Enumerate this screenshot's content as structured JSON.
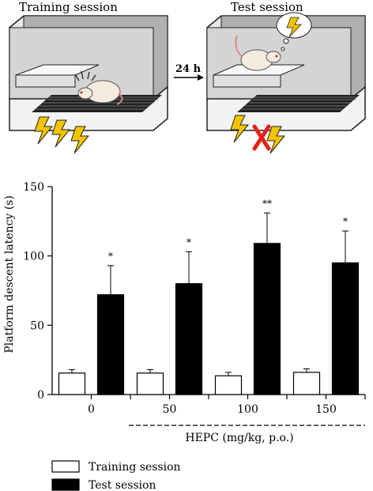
{
  "illustration": {
    "left_title": "Training session",
    "right_title": "Test session",
    "arrow_label": "24 h"
  },
  "chart_data": {
    "type": "bar",
    "categories": [
      "0",
      "50",
      "100",
      "150"
    ],
    "series": [
      {
        "name": "Training session",
        "values": [
          15.5,
          15.5,
          13.5,
          16
        ],
        "errors": [
          2.5,
          2.5,
          2.5,
          2.5
        ],
        "color": "#ffffff"
      },
      {
        "name": "Test session",
        "values": [
          72,
          80,
          109,
          95
        ],
        "errors": [
          21,
          23,
          22,
          23
        ],
        "color": "#000000"
      }
    ],
    "significance": [
      "*",
      "*",
      "**",
      "*"
    ],
    "ylabel": "Platform descent latency (s)",
    "xlabel": "HEPC (mg/kg, p.o.)",
    "ylim": [
      0,
      150
    ],
    "yticks": [
      0,
      50,
      100,
      150
    ],
    "grid": false,
    "legend_position": "bottom-left"
  },
  "colors": {
    "bar_test": "#000000",
    "bar_training": "#ffffff",
    "shock": "#f5c400",
    "cross": "#e2231a"
  }
}
